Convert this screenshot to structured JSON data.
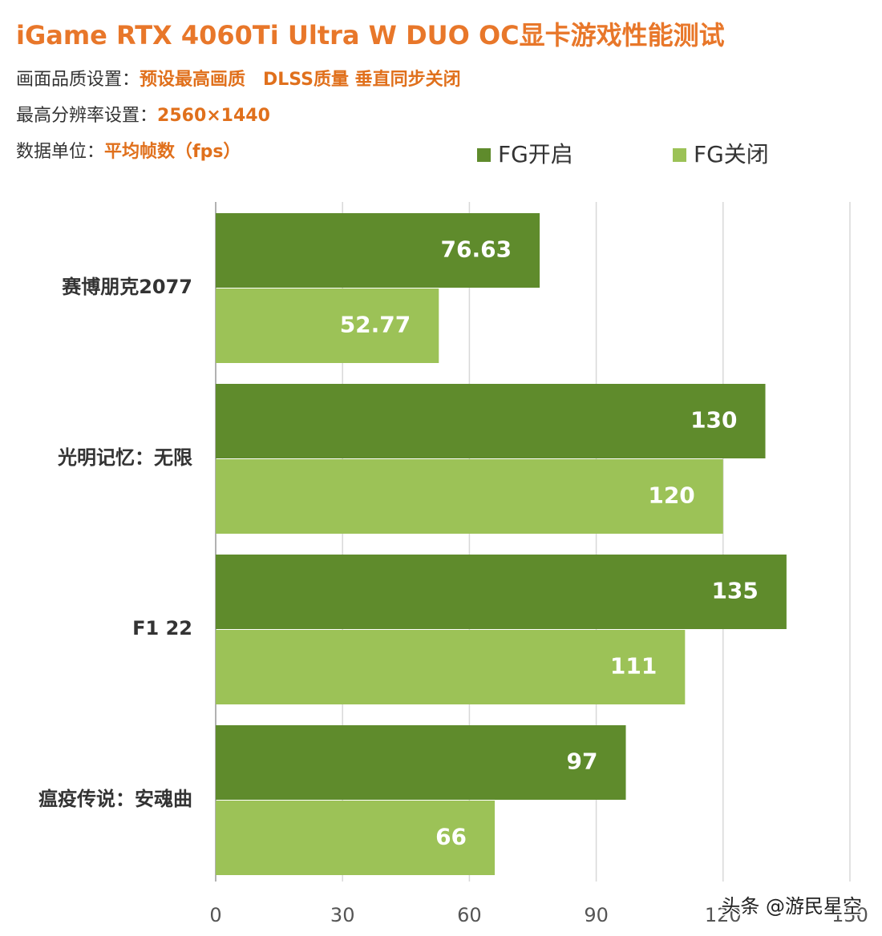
{
  "chart_data": {
    "type": "barh",
    "title": "iGame RTX 4060Ti Ultra W DUO OC显卡游戏性能测试",
    "settings": [
      {
        "label": "画面品质设置：",
        "value": "预设最高画质　DLSS质量  垂直同步关闭"
      },
      {
        "label": "最高分辨率设置：",
        "value": "2560×1440"
      },
      {
        "label": "数据单位：",
        "value": "平均帧数（fps）"
      }
    ],
    "categories": [
      "赛博朋克2077",
      "光明记忆：无限",
      "F1  22",
      "瘟疫传说：安魂曲"
    ],
    "series": [
      {
        "name": "FG开启",
        "color": "#5f8b2c",
        "values": [
          76.63,
          130,
          135,
          97
        ]
      },
      {
        "name": "FG关闭",
        "color": "#9cc257",
        "values": [
          52.77,
          120,
          111,
          66
        ]
      }
    ],
    "xlim": [
      0,
      150
    ],
    "xticks": [
      0,
      30,
      60,
      90,
      120,
      150
    ],
    "grid": true,
    "watermark": "头条 @游民星空"
  }
}
